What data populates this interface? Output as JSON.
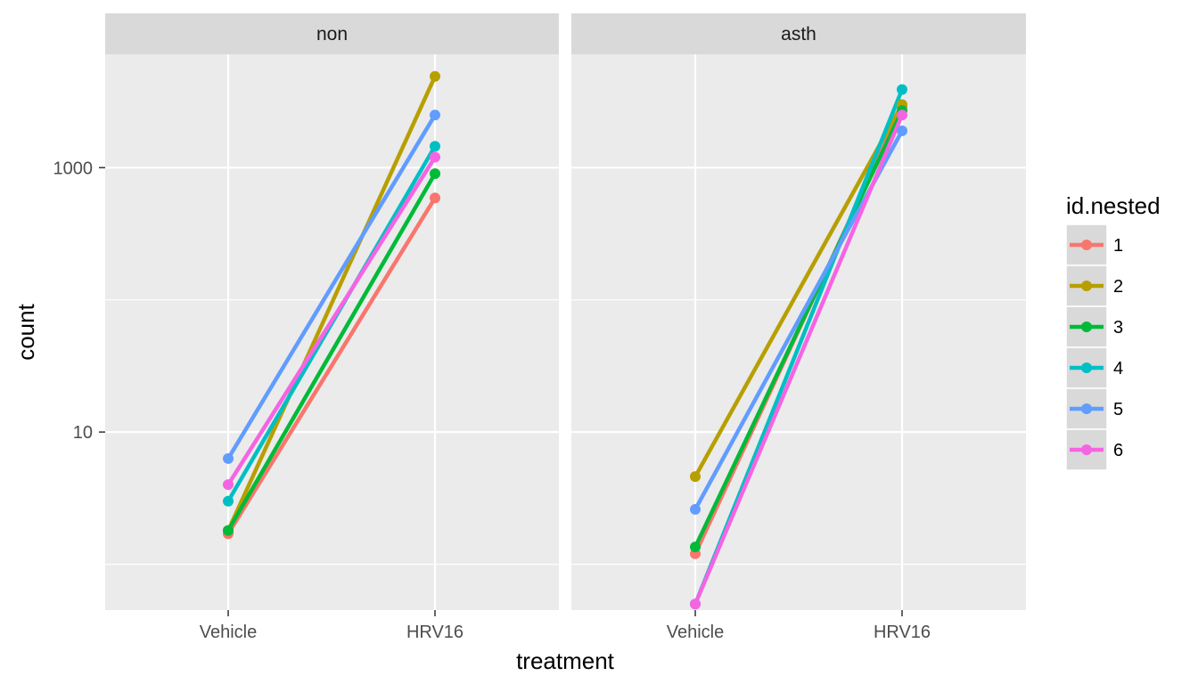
{
  "chart_data": {
    "type": "line",
    "xlabel": "treatment",
    "ylabel": "count",
    "y_scale": "log10",
    "ylim": [
      0.45,
      7200
    ],
    "y_ticks": [
      10,
      1000
    ],
    "y_tick_labels": [
      "10",
      "1000"
    ],
    "categories": [
      "Vehicle",
      "HRV16"
    ],
    "grid": true,
    "legend": {
      "title": "id.nested",
      "position": "right"
    },
    "colors": {
      "1": "#F8766D",
      "2": "#B79F00",
      "3": "#00BA38",
      "4": "#00BFC4",
      "5": "#619CFF",
      "6": "#F564E3",
      "panel_bg": "#EBEBEB",
      "strip_bg": "#D9D9D9",
      "grid": "#FFFFFF"
    },
    "panels": [
      {
        "name": "non",
        "series": [
          {
            "name": "1",
            "values": [
              1.7,
              590
            ]
          },
          {
            "name": "2",
            "values": [
              1.8,
              4900
            ]
          },
          {
            "name": "3",
            "values": [
              1.8,
              900
            ]
          },
          {
            "name": "4",
            "values": [
              3.0,
              1450
            ]
          },
          {
            "name": "5",
            "values": [
              6.3,
              2500
            ]
          },
          {
            "name": "6",
            "values": [
              4.0,
              1200
            ]
          }
        ]
      },
      {
        "name": "asth",
        "series": [
          {
            "name": "1",
            "values": [
              1.2,
              2900
            ]
          },
          {
            "name": "2",
            "values": [
              4.6,
              3000
            ]
          },
          {
            "name": "3",
            "values": [
              1.35,
              2700
            ]
          },
          {
            "name": "4",
            "values": [
              0.5,
              3900
            ]
          },
          {
            "name": "5",
            "values": [
              2.6,
              1900
            ]
          },
          {
            "name": "6",
            "values": [
              0.5,
              2500
            ]
          }
        ]
      }
    ]
  }
}
